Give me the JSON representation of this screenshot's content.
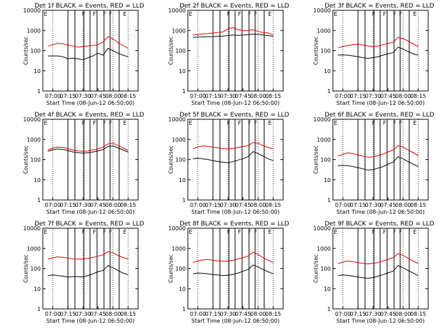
{
  "figure": {
    "colors": {
      "events": "#000000",
      "lld": "#dd0000",
      "axes": "#000000"
    }
  },
  "chart_data": [
    {
      "type": "line",
      "title": "Det 1f BLACK = Events, RED = LLD",
      "xlabel": "Start Time (08-Jun-12 06:50:00)",
      "ylabel": "Counts/sec",
      "ylog": true,
      "ylim": [
        1,
        10000
      ],
      "xticklabels": [
        "07:00",
        "07:15",
        "07:30",
        "07:45",
        "08:00",
        "08:15"
      ],
      "yticklabels": [
        "1",
        "10",
        "100",
        "1000",
        "10000"
      ],
      "x": [
        "06:55",
        "07:00",
        "07:05",
        "07:10",
        "07:15",
        "07:20",
        "07:25",
        "07:30",
        "07:35",
        "07:40",
        "07:45",
        "07:50",
        "07:55",
        "08:00",
        "08:05",
        "08:10",
        "08:15"
      ],
      "series": [
        {
          "values": [
            170,
            200,
            230,
            220,
            190,
            170,
            150,
            160,
            170,
            180,
            200,
            270,
            500,
            380,
            250,
            180,
            130
          ]
        },
        {
          "values": [
            55,
            55,
            55,
            50,
            40,
            42,
            40,
            35,
            45,
            55,
            75,
            60,
            130,
            100,
            75,
            60,
            50
          ]
        }
      ],
      "flags": [
        "E",
        "F",
        "F",
        "F",
        "F",
        "E"
      ]
    },
    {
      "type": "line",
      "title": "Det 2f BLACK = Events, RED = LLD",
      "xlabel": "Start Time (08-Jun-12 06:50:00)",
      "ylabel": "Counts/sec",
      "ylog": true,
      "ylim": [
        1,
        10000
      ],
      "xticklabels": [
        "07:00",
        "07:15",
        "07:30",
        "07:45",
        "08:00",
        "08:15"
      ],
      "yticklabels": [
        "1",
        "10",
        "100",
        "1000",
        "10000"
      ],
      "x": [
        "06:55",
        "07:00",
        "07:05",
        "07:10",
        "07:15",
        "07:20",
        "07:25",
        "07:30",
        "07:35",
        "07:40",
        "07:45",
        "07:50",
        "07:55",
        "08:00",
        "08:05",
        "08:10",
        "08:15"
      ],
      "series": [
        {
          "values": [
            600,
            620,
            680,
            700,
            750,
            800,
            850,
            1200,
            1400,
            1100,
            1000,
            1000,
            1100,
            900,
            800,
            750,
            600
          ]
        },
        {
          "values": [
            450,
            470,
            480,
            500,
            500,
            520,
            530,
            560,
            600,
            580,
            600,
            620,
            660,
            650,
            600,
            560,
            520
          ]
        }
      ],
      "flags": [
        "E",
        "F",
        "F",
        "F",
        "F",
        "E"
      ]
    },
    {
      "type": "line",
      "title": "Det 3f BLACK = Events, RED = LLD",
      "xlabel": "Start Time (08-Jun-12 06:50:00)",
      "ylabel": "Counts/sec",
      "ylog": true,
      "ylim": [
        1,
        10000
      ],
      "xticklabels": [
        "07:00",
        "07:15",
        "07:30",
        "07:45",
        "08:00",
        "08:15"
      ],
      "yticklabels": [
        "1",
        "10",
        "100",
        "1000",
        "10000"
      ],
      "x": [
        "06:55",
        "07:00",
        "07:05",
        "07:10",
        "07:15",
        "07:20",
        "07:25",
        "07:30",
        "07:35",
        "07:40",
        "07:45",
        "07:50",
        "07:55",
        "08:00",
        "08:05",
        "08:10",
        "08:15"
      ],
      "series": [
        {
          "values": [
            140,
            160,
            180,
            200,
            210,
            190,
            170,
            160,
            170,
            200,
            230,
            260,
            450,
            400,
            300,
            220,
            160
          ]
        },
        {
          "values": [
            60,
            62,
            60,
            55,
            50,
            45,
            42,
            45,
            50,
            60,
            70,
            80,
            150,
            120,
            90,
            70,
            60
          ]
        }
      ],
      "flags": [
        "E",
        "F",
        "F",
        "F",
        "F",
        "E"
      ]
    },
    {
      "type": "line",
      "title": "Det 4f BLACK = Events, RED = LLD",
      "xlabel": "Start Time (08-Jun-12 06:50:00)",
      "ylabel": "Counts/sec",
      "ylog": true,
      "ylim": [
        1,
        10000
      ],
      "xticklabels": [
        "07:00",
        "07:15",
        "07:30",
        "07:45",
        "08:00",
        "08:15"
      ],
      "yticklabels": [
        "1",
        "10",
        "100",
        "1000",
        "10000"
      ],
      "x": [
        "06:55",
        "07:00",
        "07:05",
        "07:10",
        "07:15",
        "07:20",
        "07:25",
        "07:30",
        "07:35",
        "07:40",
        "07:45",
        "07:50",
        "07:55",
        "08:00",
        "08:05",
        "08:10",
        "08:15"
      ],
      "series": [
        {
          "values": [
            300,
            380,
            420,
            400,
            350,
            300,
            270,
            260,
            270,
            300,
            340,
            420,
            600,
            650,
            500,
            380,
            290
          ]
        },
        {
          "values": [
            260,
            310,
            340,
            320,
            280,
            240,
            220,
            210,
            220,
            240,
            270,
            320,
            450,
            480,
            380,
            300,
            240
          ]
        }
      ],
      "flags": [
        "E",
        "F",
        "F",
        "F",
        "F",
        "E"
      ]
    },
    {
      "type": "line",
      "title": "Det 5f BLACK = Events, RED = LLD",
      "xlabel": "Start Time (08-Jun-12 06:50:00)",
      "ylabel": "Counts/sec",
      "ylog": true,
      "ylim": [
        1,
        10000
      ],
      "xticklabels": [
        "07:00",
        "07:15",
        "07:30",
        "07:45",
        "08:00",
        "08:15"
      ],
      "yticklabels": [
        "1",
        "10",
        "100",
        "1000",
        "10000"
      ],
      "x": [
        "06:55",
        "07:00",
        "07:05",
        "07:10",
        "07:15",
        "07:20",
        "07:25",
        "07:30",
        "07:35",
        "07:40",
        "07:45",
        "07:50",
        "07:55",
        "08:00",
        "08:05",
        "08:10",
        "08:15"
      ],
      "series": [
        {
          "values": [
            350,
            420,
            480,
            460,
            420,
            380,
            350,
            340,
            360,
            400,
            450,
            500,
            700,
            650,
            500,
            400,
            350
          ]
        },
        {
          "values": [
            110,
            120,
            110,
            100,
            90,
            80,
            75,
            70,
            80,
            95,
            110,
            140,
            250,
            200,
            150,
            110,
            90
          ]
        }
      ],
      "flags": [
        "E",
        "F",
        "F",
        "F",
        "F",
        "E"
      ]
    },
    {
      "type": "line",
      "title": "Det 6f BLACK = Events, RED = LLD",
      "xlabel": "Start Time (08-Jun-12 06:50:00)",
      "ylabel": "Counts/sec",
      "ylog": true,
      "ylim": [
        1,
        10000
      ],
      "xticklabels": [
        "07:00",
        "07:15",
        "07:30",
        "07:45",
        "08:00",
        "08:15"
      ],
      "yticklabels": [
        "1",
        "10",
        "100",
        "1000",
        "10000"
      ],
      "x": [
        "06:55",
        "07:00",
        "07:05",
        "07:10",
        "07:15",
        "07:20",
        "07:25",
        "07:30",
        "07:35",
        "07:40",
        "07:45",
        "07:50",
        "07:55",
        "08:00",
        "08:05",
        "08:10",
        "08:15"
      ],
      "series": [
        {
          "values": [
            150,
            180,
            220,
            200,
            170,
            150,
            130,
            140,
            160,
            190,
            240,
            300,
            500,
            420,
            300,
            220,
            160
          ]
        },
        {
          "values": [
            50,
            52,
            50,
            45,
            40,
            35,
            30,
            32,
            38,
            45,
            60,
            75,
            140,
            110,
            80,
            60,
            45
          ]
        }
      ],
      "flags": [
        "E",
        "F",
        "F",
        "F",
        "F",
        "E"
      ]
    },
    {
      "type": "line",
      "title": "Det 7f BLACK = Events, RED = LLD",
      "xlabel": "Start Time (08-Jun-12 06:50:00)",
      "ylabel": "Counts/sec",
      "ylog": true,
      "ylim": [
        1,
        10000
      ],
      "xticklabels": [
        "07:00",
        "07:15",
        "07:30",
        "07:45",
        "08:00",
        "08:15"
      ],
      "yticklabels": [
        "1",
        "10",
        "100",
        "1000",
        "10000"
      ],
      "x": [
        "06:55",
        "07:00",
        "07:05",
        "07:10",
        "07:15",
        "07:20",
        "07:25",
        "07:30",
        "07:35",
        "07:40",
        "07:45",
        "07:50",
        "07:55",
        "08:00",
        "08:05",
        "08:10",
        "08:15"
      ],
      "series": [
        {
          "values": [
            300,
            340,
            380,
            360,
            330,
            300,
            290,
            300,
            320,
            360,
            420,
            480,
            700,
            600,
            450,
            350,
            300
          ]
        },
        {
          "values": [
            45,
            48,
            45,
            42,
            38,
            40,
            40,
            38,
            45,
            55,
            70,
            80,
            140,
            110,
            80,
            60,
            50
          ]
        }
      ],
      "flags": [
        "E",
        "F",
        "F",
        "F",
        "F",
        "E"
      ]
    },
    {
      "type": "line",
      "title": "Det 8f BLACK = Events, RED = LLD",
      "xlabel": "Start Time (08-Jun-12 06:50:00)",
      "ylabel": "Counts/sec",
      "ylog": true,
      "ylim": [
        1,
        10000
      ],
      "xticklabels": [
        "07:00",
        "07:15",
        "07:30",
        "07:45",
        "08:00",
        "08:15"
      ],
      "yticklabels": [
        "1",
        "10",
        "100",
        "1000",
        "10000"
      ],
      "x": [
        "06:55",
        "07:00",
        "07:05",
        "07:10",
        "07:15",
        "07:20",
        "07:25",
        "07:30",
        "07:35",
        "07:40",
        "07:45",
        "07:50",
        "07:55",
        "08:00",
        "08:05",
        "08:10",
        "08:15"
      ],
      "series": [
        {
          "values": [
            200,
            240,
            270,
            280,
            260,
            240,
            230,
            240,
            260,
            300,
            350,
            420,
            650,
            500,
            350,
            260,
            200
          ]
        },
        {
          "values": [
            55,
            60,
            58,
            55,
            50,
            48,
            45,
            47,
            52,
            60,
            75,
            90,
            150,
            120,
            90,
            70,
            55
          ]
        }
      ],
      "flags": [
        "E",
        "F",
        "F",
        "F",
        "F",
        "E"
      ]
    },
    {
      "type": "line",
      "title": "Det 9f BLACK = Events, RED = LLD",
      "xlabel": "Start Time (08-Jun-12 06:50:00)",
      "ylabel": "Counts/sec",
      "ylog": true,
      "ylim": [
        1,
        10000
      ],
      "xticklabels": [
        "07:00",
        "07:15",
        "07:30",
        "07:45",
        "08:00",
        "08:15"
      ],
      "yticklabels": [
        "1",
        "10",
        "100",
        "1000",
        "10000"
      ],
      "x": [
        "06:55",
        "07:00",
        "07:05",
        "07:10",
        "07:15",
        "07:20",
        "07:25",
        "07:30",
        "07:35",
        "07:40",
        "07:45",
        "07:50",
        "07:55",
        "08:00",
        "08:05",
        "08:10",
        "08:15"
      ],
      "series": [
        {
          "values": [
            180,
            210,
            240,
            220,
            200,
            180,
            170,
            180,
            200,
            240,
            290,
            350,
            550,
            450,
            320,
            240,
            180
          ]
        },
        {
          "values": [
            45,
            48,
            46,
            42,
            38,
            35,
            33,
            36,
            42,
            50,
            62,
            75,
            140,
            110,
            80,
            60,
            45
          ]
        }
      ],
      "flags": [
        "E",
        "F",
        "F",
        "F",
        "F",
        "E"
      ]
    }
  ]
}
